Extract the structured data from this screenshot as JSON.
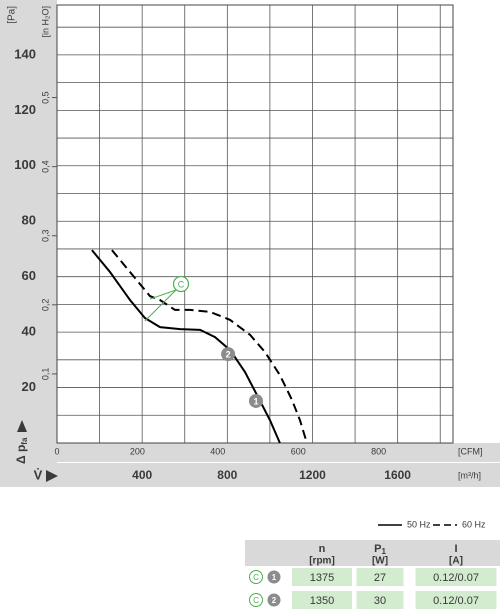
{
  "chart_data": {
    "type": "line",
    "y_unit": "[Pa]",
    "y2_unit": "[in H₂O]",
    "x2_unit": "[CFM]",
    "x_unit": "[m³/h]",
    "y_label": "Δ p",
    "y_label_sub": "fa",
    "x_label": "V̇",
    "xlim": [
      0,
      1860
    ],
    "xticks": [
      400,
      800,
      1200,
      1600
    ],
    "minor_xticks": [
      200,
      600,
      1000,
      1400,
      1800
    ],
    "x2lim": [
      0,
      985
    ],
    "x2ticks": [
      0,
      200,
      400,
      600,
      800
    ],
    "ylim": [
      0,
      158
    ],
    "yticks": [
      20,
      40,
      60,
      80,
      100,
      120,
      140
    ],
    "minor_yticks": [
      10,
      30,
      50,
      70,
      90,
      110,
      130,
      150
    ],
    "y2lim": [
      0,
      0.634
    ],
    "y2ticks": [
      {
        "value": 0.1,
        "label": "0,1"
      },
      {
        "value": 0.2,
        "label": "0,2"
      },
      {
        "value": 0.3,
        "label": "0,3"
      },
      {
        "value": 0.4,
        "label": "0,4"
      },
      {
        "value": 0.5,
        "label": "0,5"
      }
    ],
    "grid": true,
    "series": [
      {
        "name": "50 Hz",
        "color": "#000000",
        "dash": false,
        "x": [
          164,
          249,
          343,
          413,
          484,
          578,
          672,
          742,
          813,
          883,
          944,
          1000,
          1047
        ],
        "values": [
          69.6,
          61.7,
          51.6,
          45.1,
          41.8,
          41.1,
          40.8,
          38.2,
          33.5,
          25.6,
          16.6,
          8.3,
          0
        ]
      },
      {
        "name": "60 Hz",
        "color": "#000000",
        "dash": true,
        "x": [
          258,
          343,
          437,
          484,
          554,
          625,
          719,
          813,
          907,
          977,
          1047,
          1104,
          1141,
          1174
        ],
        "values": [
          69.6,
          61.7,
          53,
          51.6,
          48,
          48,
          47.3,
          44.4,
          39,
          32.8,
          24.5,
          15.5,
          8.3,
          0
        ]
      }
    ],
    "curve_labels": [
      {
        "text": "1"
      },
      {
        "text": "2"
      }
    ],
    "annotation": {
      "text": "C",
      "color": "#4caf50"
    }
  },
  "table": {
    "header": [
      {
        "title": "n",
        "unit": "[rpm]"
      },
      {
        "title": "P",
        "sub": "1",
        "unit": "[W]"
      },
      {
        "title": "I",
        "unit": "[A]"
      }
    ],
    "rows": [
      {
        "type": "C",
        "curve": "1",
        "n": 1375,
        "p1": 27,
        "i": "0.12/0.07"
      },
      {
        "type": "C",
        "curve": "2",
        "n": 1350,
        "p1": 30,
        "i": "0.12/0.07"
      }
    ]
  }
}
